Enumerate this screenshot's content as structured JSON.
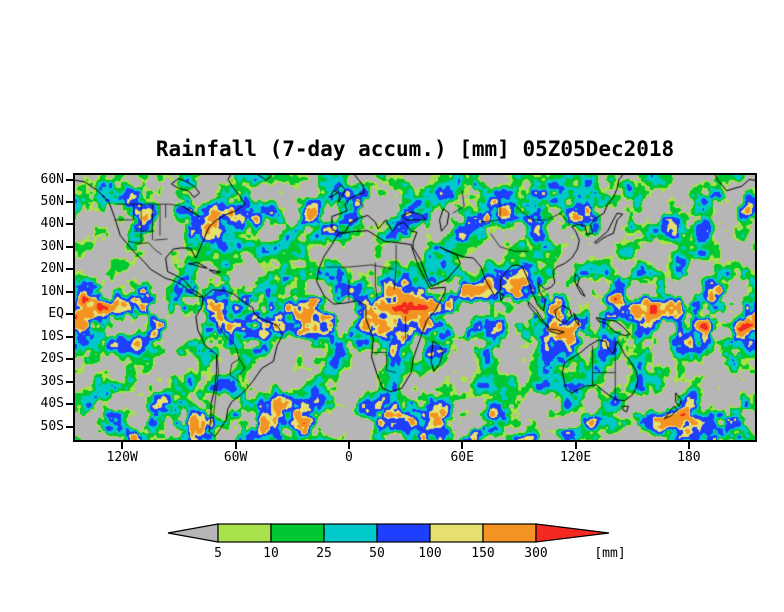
{
  "page": {
    "background": "#ffffff"
  },
  "chart_data": {
    "type": "heatmap",
    "title": "Rainfall (7-day accum.) [mm] 05Z05Dec2018",
    "variable": "Rainfall",
    "accumulation_period": "7-day accum.",
    "valid_time": "05Z05Dec2018",
    "units_label": "[mm]",
    "lat_ticks": [
      "60N",
      "50N",
      "40N",
      "30N",
      "20N",
      "10N",
      "EQ",
      "10S",
      "20S",
      "30S",
      "40S",
      "50S"
    ],
    "lat_tick_values": [
      60,
      50,
      40,
      30,
      20,
      10,
      0,
      -10,
      -20,
      -30,
      -40,
      -50
    ],
    "lon_ticks": [
      "120W",
      "60W",
      "0",
      "60E",
      "120E",
      "180"
    ],
    "lon_tick_values": [
      -120,
      -60,
      0,
      60,
      120,
      180
    ],
    "lat_range": [
      62,
      -56
    ],
    "lon_range": [
      -145,
      215
    ],
    "colorbar": {
      "levels": [
        "5",
        "10",
        "25",
        "50",
        "100",
        "150",
        "300"
      ],
      "level_values_mm": [
        5,
        10,
        25,
        50,
        100,
        150,
        300
      ],
      "below_min_color": "#b6b6b6",
      "segment_colors": [
        "#a9e14b",
        "#00c832",
        "#00c9c9",
        "#1f3fff",
        "#e6e06e",
        "#f39322"
      ],
      "above_max_color": "#f5291f"
    },
    "map_background_color": "#b6b6b6",
    "coastline_color": "#000000",
    "frame_color": "#000000",
    "field_description": "7-day accumulated rainfall in mm; gray areas below 5 mm"
  }
}
